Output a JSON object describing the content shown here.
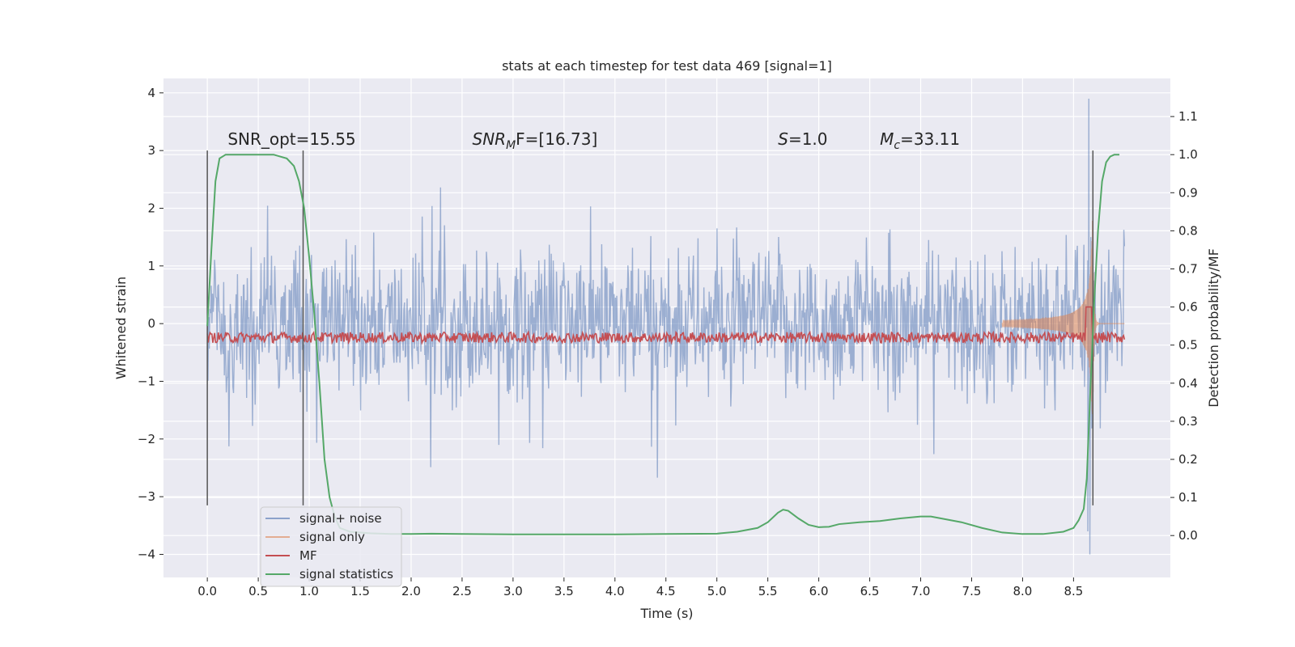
{
  "chart_data": {
    "type": "line",
    "title": "stats at each timestep for test data 469 [signal=1]",
    "xlabel": "Time (s)",
    "ylabel": "Whitened strain",
    "ylabel_right": "Detection probability/MF",
    "xlim": [
      -0.43,
      9.45
    ],
    "ylim": [
      -4.4,
      4.25
    ],
    "ylim_right": [
      -0.11,
      1.2
    ],
    "x_ticks": [
      "0.0",
      "0.5",
      "1.0",
      "1.5",
      "2.0",
      "2.5",
      "3.0",
      "3.5",
      "4.0",
      "4.5",
      "5.0",
      "5.5",
      "6.0",
      "6.5",
      "7.0",
      "7.5",
      "8.0",
      "8.5"
    ],
    "x_tick_values": [
      0,
      0.5,
      1,
      1.5,
      2,
      2.5,
      3,
      3.5,
      4,
      4.5,
      5,
      5.5,
      6,
      6.5,
      7,
      7.5,
      8,
      8.5
    ],
    "y_ticks": [
      "4",
      "3",
      "2",
      "1",
      "0",
      "−1",
      "−2",
      "−3",
      "−4"
    ],
    "y_tick_values": [
      4,
      3,
      2,
      1,
      0,
      -1,
      -2,
      -3,
      -4
    ],
    "y_ticks_right": [
      "1.1",
      "1.0",
      "0.9",
      "0.8",
      "0.7",
      "0.6",
      "0.5",
      "0.4",
      "0.3",
      "0.2",
      "0.1",
      "0.0"
    ],
    "y_tick_values_right": [
      1.1,
      1.0,
      0.9,
      0.8,
      0.7,
      0.6,
      0.5,
      0.4,
      0.3,
      0.2,
      0.1,
      0.0
    ],
    "grid": true,
    "legend_position": "lower-left",
    "series": [
      {
        "name": "signal+ noise",
        "axis": "left",
        "color": "#4c72b0",
        "x_range": [
          0,
          9.0
        ],
        "amplitude_typical": 1.3,
        "amplitude_peak": 3.9,
        "peak_x": 8.65
      },
      {
        "name": "signal only",
        "axis": "left",
        "color": "#dd8452",
        "x_range": [
          0,
          9.0
        ],
        "chirp_start": 7.8,
        "peak_x": 8.65,
        "peak_value": 2.6
      },
      {
        "name": "MF",
        "axis": "right",
        "color": "#c44e52",
        "x_range": [
          0,
          9.0
        ],
        "baseline": 0.52,
        "peak_x": 8.65,
        "peak_value": 0.6
      },
      {
        "name": "signal statistics",
        "axis": "right",
        "color": "#55a868",
        "x": [
          0,
          0.04,
          0.08,
          0.12,
          0.18,
          0.25,
          0.35,
          0.5,
          0.65,
          0.78,
          0.85,
          0.9,
          0.95,
          1.0,
          1.05,
          1.1,
          1.15,
          1.2,
          1.25,
          1.3,
          1.4,
          1.6,
          1.8,
          2.0,
          2.2,
          2.5,
          3.0,
          3.5,
          4.0,
          4.5,
          5.0,
          5.2,
          5.4,
          5.5,
          5.6,
          5.65,
          5.7,
          5.8,
          5.9,
          6.0,
          6.1,
          6.2,
          6.4,
          6.6,
          6.8,
          7.0,
          7.1,
          7.2,
          7.4,
          7.6,
          7.8,
          8.0,
          8.2,
          8.4,
          8.5,
          8.55,
          8.6,
          8.63,
          8.66,
          8.7,
          8.74,
          8.78,
          8.82,
          8.86,
          8.9,
          8.95
        ],
        "y": [
          0.55,
          0.75,
          0.93,
          0.99,
          1.0,
          1.0,
          1.0,
          1.0,
          1.0,
          0.99,
          0.97,
          0.93,
          0.86,
          0.73,
          0.58,
          0.4,
          0.2,
          0.1,
          0.05,
          0.02,
          0.01,
          0.006,
          0.004,
          0.004,
          0.005,
          0.004,
          0.003,
          0.003,
          0.003,
          0.004,
          0.005,
          0.01,
          0.02,
          0.035,
          0.06,
          0.068,
          0.065,
          0.045,
          0.028,
          0.022,
          0.023,
          0.03,
          0.035,
          0.038,
          0.045,
          0.05,
          0.05,
          0.045,
          0.035,
          0.02,
          0.008,
          0.004,
          0.004,
          0.01,
          0.02,
          0.04,
          0.07,
          0.15,
          0.35,
          0.6,
          0.8,
          0.93,
          0.98,
          0.995,
          1.0,
          1.0
        ]
      }
    ],
    "vertical_markers_x": [
      0.0,
      0.94,
      8.69
    ],
    "annotations": [
      {
        "text_plain": "SNR_opt=15.55",
        "x": 0.2,
        "y": 3.1
      },
      {
        "text_main": "SNR",
        "text_sub": "M",
        "text_after": "F=[16.73]",
        "x": 2.6,
        "y": 3.1
      },
      {
        "text_main": "S",
        "text_after": "=1.0",
        "x": 5.6,
        "y": 3.1
      },
      {
        "text_main": "M",
        "text_sub": "c",
        "text_after": "=33.11",
        "x": 6.6,
        "y": 3.1
      }
    ]
  }
}
